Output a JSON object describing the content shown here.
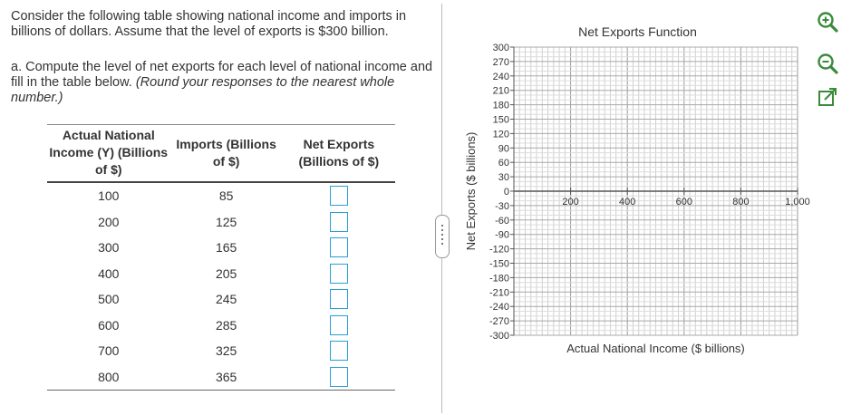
{
  "problem": {
    "intro": "Consider the following table showing national income and imports in billions of dollars. Assume that the level of exports is $300 billion.",
    "question_prefix": "a. Compute the level of net exports for each level of national income and fill in the table below.",
    "question_note": "(Round your responses to the nearest whole number.)"
  },
  "table": {
    "headers": {
      "income": "Actual National Income (Y) (Billions of $)",
      "imports": "Imports (Billions of $)",
      "net_exports": "Net Exports (Billions of $)"
    },
    "rows": [
      {
        "income": "100",
        "imports": "85",
        "net_exports": ""
      },
      {
        "income": "200",
        "imports": "125",
        "net_exports": ""
      },
      {
        "income": "300",
        "imports": "165",
        "net_exports": ""
      },
      {
        "income": "400",
        "imports": "205",
        "net_exports": ""
      },
      {
        "income": "500",
        "imports": "245",
        "net_exports": ""
      },
      {
        "income": "600",
        "imports": "285",
        "net_exports": ""
      },
      {
        "income": "700",
        "imports": "325",
        "net_exports": ""
      },
      {
        "income": "800",
        "imports": "365",
        "net_exports": ""
      }
    ]
  },
  "chart_data": {
    "type": "line",
    "title": "Net Exports Function",
    "xlabel": "Actual National Income ($ billions)",
    "ylabel": "Net Exports ($ billions)",
    "xlim": [
      0,
      1000
    ],
    "ylim": [
      -300,
      300
    ],
    "x_ticks": [
      "200",
      "400",
      "600",
      "800",
      "1,000"
    ],
    "y_ticks": [
      "300",
      "270",
      "240",
      "210",
      "180",
      "150",
      "120",
      "90",
      "60",
      "30",
      "0",
      "-30",
      "-60",
      "-90",
      "-120",
      "-150",
      "-180",
      "-210",
      "-240",
      "-270",
      "-300"
    ],
    "grid": true,
    "series": []
  },
  "tools": {
    "zoom_in": "zoom-in-icon",
    "zoom_out": "zoom-out-icon",
    "expand": "expand-icon"
  },
  "colors": {
    "input_border": "#2a9fd6",
    "grid": "#c8c8c8",
    "axis": "#666666",
    "tool_icon": "#3a8a3a"
  }
}
